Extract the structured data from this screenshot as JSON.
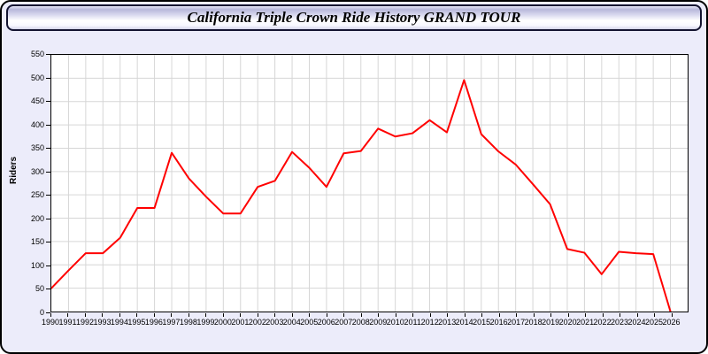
{
  "title": "California Triple Crown Ride History GRAND TOUR",
  "colors": {
    "page_background": "#ececfa",
    "plot_background": "#ffffff",
    "grid": "#d6d6d6",
    "axis": "#000000",
    "line": "#ff0000"
  },
  "chart_data": {
    "type": "line",
    "title": "California Triple Crown Ride History GRAND TOUR",
    "xlabel": "",
    "ylabel": "Riders",
    "ylim": [
      0,
      550
    ],
    "ytick_step": 50,
    "xlim": [
      1990,
      2027
    ],
    "grid": true,
    "legend_position": "none",
    "x": [
      1990,
      1991,
      1992,
      1993,
      1994,
      1995,
      1996,
      1997,
      1998,
      1999,
      2000,
      2001,
      2002,
      2003,
      2004,
      2005,
      2006,
      2007,
      2008,
      2009,
      2010,
      2011,
      2012,
      2013,
      2014,
      2015,
      2016,
      2017,
      2018,
      2019,
      2020,
      2021,
      2022,
      2023,
      2024,
      2025,
      2026
    ],
    "series": [
      {
        "name": "Riders",
        "color": "#ff0000",
        "values": [
          50,
          88,
          125,
          125,
          158,
          222,
          222,
          340,
          285,
          246,
          210,
          210,
          267,
          280,
          342,
          308,
          267,
          339,
          344,
          392,
          375,
          382,
          410,
          384,
          496,
          380,
          343,
          315,
          273,
          230,
          134,
          126,
          80,
          128,
          125,
          123,
          0
        ]
      }
    ]
  }
}
